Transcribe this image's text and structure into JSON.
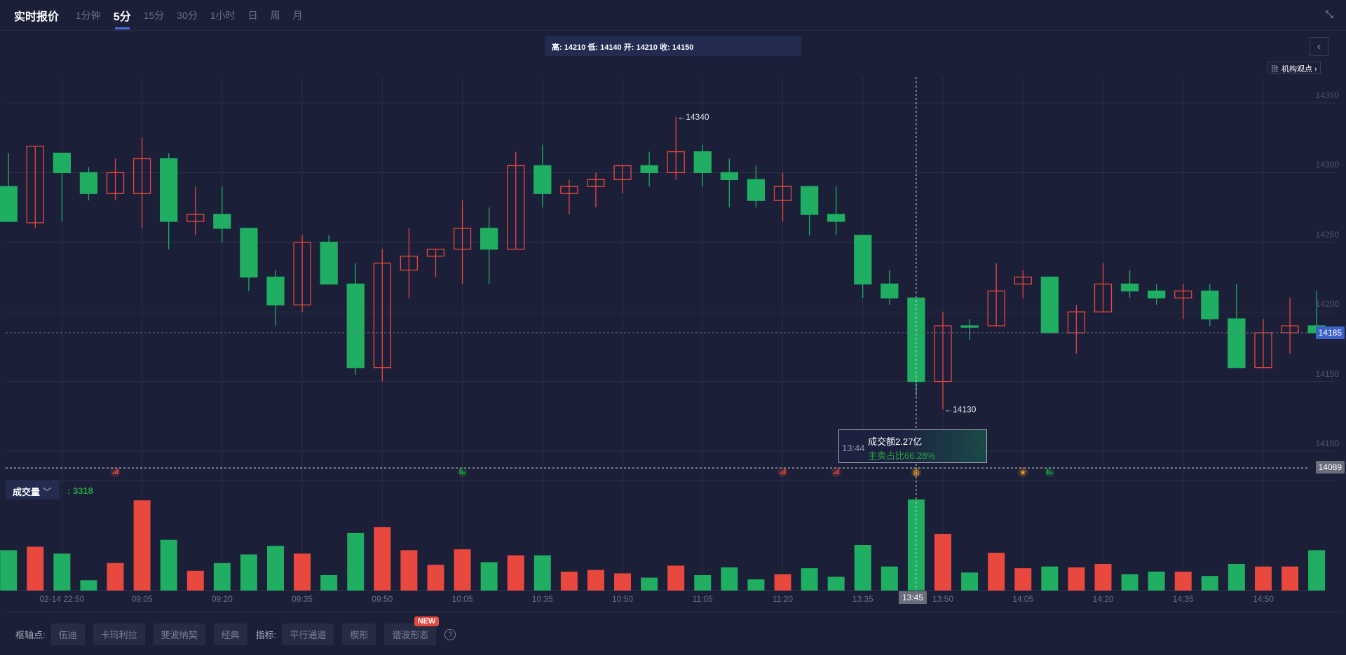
{
  "header": {
    "title": "实时报价",
    "tabs": [
      "1分钟",
      "5分",
      "15分",
      "30分",
      "1小时",
      "日",
      "周",
      "月"
    ],
    "active_tab": "5分"
  },
  "ohlc_readout": "高: 14210 低: 14140 开: 14210 收: 14150",
  "views_button": {
    "prefix": "㢸",
    "label": "机构观点 ›"
  },
  "colors": {
    "up": "#e8483e",
    "down": "#1fae62",
    "accent": "#4a6fd8",
    "bg": "#1b1f38"
  },
  "price_axis": {
    "ticks": [
      14350,
      14300,
      14250,
      14200,
      14150,
      14100
    ],
    "range": [
      14077,
      14367
    ]
  },
  "current_price": "14185",
  "crosshair_price": "14089",
  "crosshair_time": "13:45",
  "annotations": {
    "high": "←14340",
    "low": "←14130"
  },
  "time_labels": [
    "02-14 22:50",
    "09:05",
    "09:20",
    "09:35",
    "09:50",
    "10:05",
    "10:35",
    "10:50",
    "11:05",
    "11:20",
    "13:35",
    "13:50",
    "14:05",
    "14:20",
    "14:35",
    "14:50"
  ],
  "tooltip": {
    "time": "13:44",
    "amount": "成交额2.27亿",
    "ratio": "主卖占比66.28%"
  },
  "volume": {
    "selector": "成交量",
    "value": ": 3318"
  },
  "chart_data": {
    "type": "candlestick",
    "candles": [
      [
        14290,
        14265,
        14314,
        14265
      ],
      [
        14264,
        14319,
        14319,
        14260
      ],
      [
        14314,
        14300,
        14314,
        14265
      ],
      [
        14300,
        14285,
        14304,
        14280
      ],
      [
        14285,
        14300,
        14310,
        14280
      ],
      [
        14285,
        14310,
        14325,
        14260
      ],
      [
        14310,
        14265,
        14314,
        14245
      ],
      [
        14265,
        14270,
        14290,
        14255
      ],
      [
        14270,
        14260,
        14290,
        14250
      ],
      [
        14260,
        14225,
        14260,
        14215
      ],
      [
        14225,
        14205,
        14230,
        14190
      ],
      [
        14205,
        14250,
        14255,
        14200
      ],
      [
        14250,
        14220,
        14255,
        14220
      ],
      [
        14220,
        14160,
        14235,
        14155
      ],
      [
        14160,
        14235,
        14245,
        14150
      ],
      [
        14230,
        14240,
        14260,
        14210
      ],
      [
        14240,
        14245,
        14245,
        14225
      ],
      [
        14245,
        14260,
        14280,
        14220
      ],
      [
        14260,
        14245,
        14275,
        14220
      ],
      [
        14245,
        14305,
        14315,
        14245
      ],
      [
        14305,
        14285,
        14320,
        14275
      ],
      [
        14285,
        14290,
        14295,
        14270
      ],
      [
        14290,
        14295,
        14300,
        14275
      ],
      [
        14295,
        14305,
        14305,
        14285
      ],
      [
        14305,
        14300,
        14315,
        14290
      ],
      [
        14300,
        14315,
        14340,
        14295
      ],
      [
        14315,
        14300,
        14320,
        14290
      ],
      [
        14300,
        14295,
        14310,
        14275
      ],
      [
        14295,
        14280,
        14305,
        14275
      ],
      [
        14280,
        14290,
        14300,
        14265
      ],
      [
        14290,
        14270,
        14290,
        14255
      ],
      [
        14270,
        14265,
        14290,
        14255
      ],
      [
        14255,
        14220,
        14255,
        14210
      ],
      [
        14220,
        14210,
        14230,
        14205
      ],
      [
        14210,
        14150,
        14210,
        14140
      ],
      [
        14150,
        14190,
        14200,
        14130
      ],
      [
        14190,
        14189,
        14195,
        14180
      ],
      [
        14190,
        14215,
        14235,
        14190
      ],
      [
        14220,
        14225,
        14230,
        14210
      ],
      [
        14225,
        14185,
        14225,
        14185
      ],
      [
        14185,
        14200,
        14205,
        14170
      ],
      [
        14200,
        14220,
        14235,
        14200
      ],
      [
        14220,
        14215,
        14230,
        14210
      ],
      [
        14215,
        14210,
        14220,
        14205
      ],
      [
        14210,
        14215,
        14220,
        14195
      ],
      [
        14215,
        14195,
        14220,
        14190
      ],
      [
        14195,
        14160,
        14220,
        14160
      ],
      [
        14160,
        14185,
        14195,
        14160
      ],
      [
        14185,
        14190,
        14210,
        14170
      ],
      [
        14190,
        14185,
        14215,
        14185
      ]
    ],
    "candle_fields": [
      "open",
      "close",
      "high",
      "low"
    ],
    "volumes": [
      1471,
      1596,
      1346,
      376,
      1002,
      3287,
      1847,
      720,
      1002,
      1315,
      1628,
      1346,
      563,
      2097,
      2316,
      1471,
      939,
      1502,
      1033,
      1283,
      1283,
      689,
      751,
      626,
      470,
      908,
      563,
      845,
      407,
      595,
      814,
      501,
      1659,
      876,
      3318,
      2066,
      657,
      1377,
      814,
      876,
      845,
      970,
      595,
      689,
      689,
      532,
      970,
      876,
      876,
      1471
    ],
    "markers": [
      {
        "i": 4,
        "type": "red-bars"
      },
      {
        "i": 17,
        "type": "green-bars"
      },
      {
        "i": 29,
        "type": "red-bars"
      },
      {
        "i": 31,
        "type": "red-bars"
      },
      {
        "i": 34,
        "type": "coin"
      },
      {
        "i": 38,
        "type": "star"
      },
      {
        "i": 39,
        "type": "green-bars"
      }
    ]
  },
  "toolbar": {
    "pivot_label": "枢轴点:",
    "pivots": [
      "伍迪",
      "卡玛利拉",
      "斐波纳契",
      "经典"
    ],
    "indicator_label": "指标:",
    "indicators": [
      "平行通道",
      "楔形",
      "谐波形态"
    ],
    "new_badge": "NEW",
    "help": "?"
  }
}
